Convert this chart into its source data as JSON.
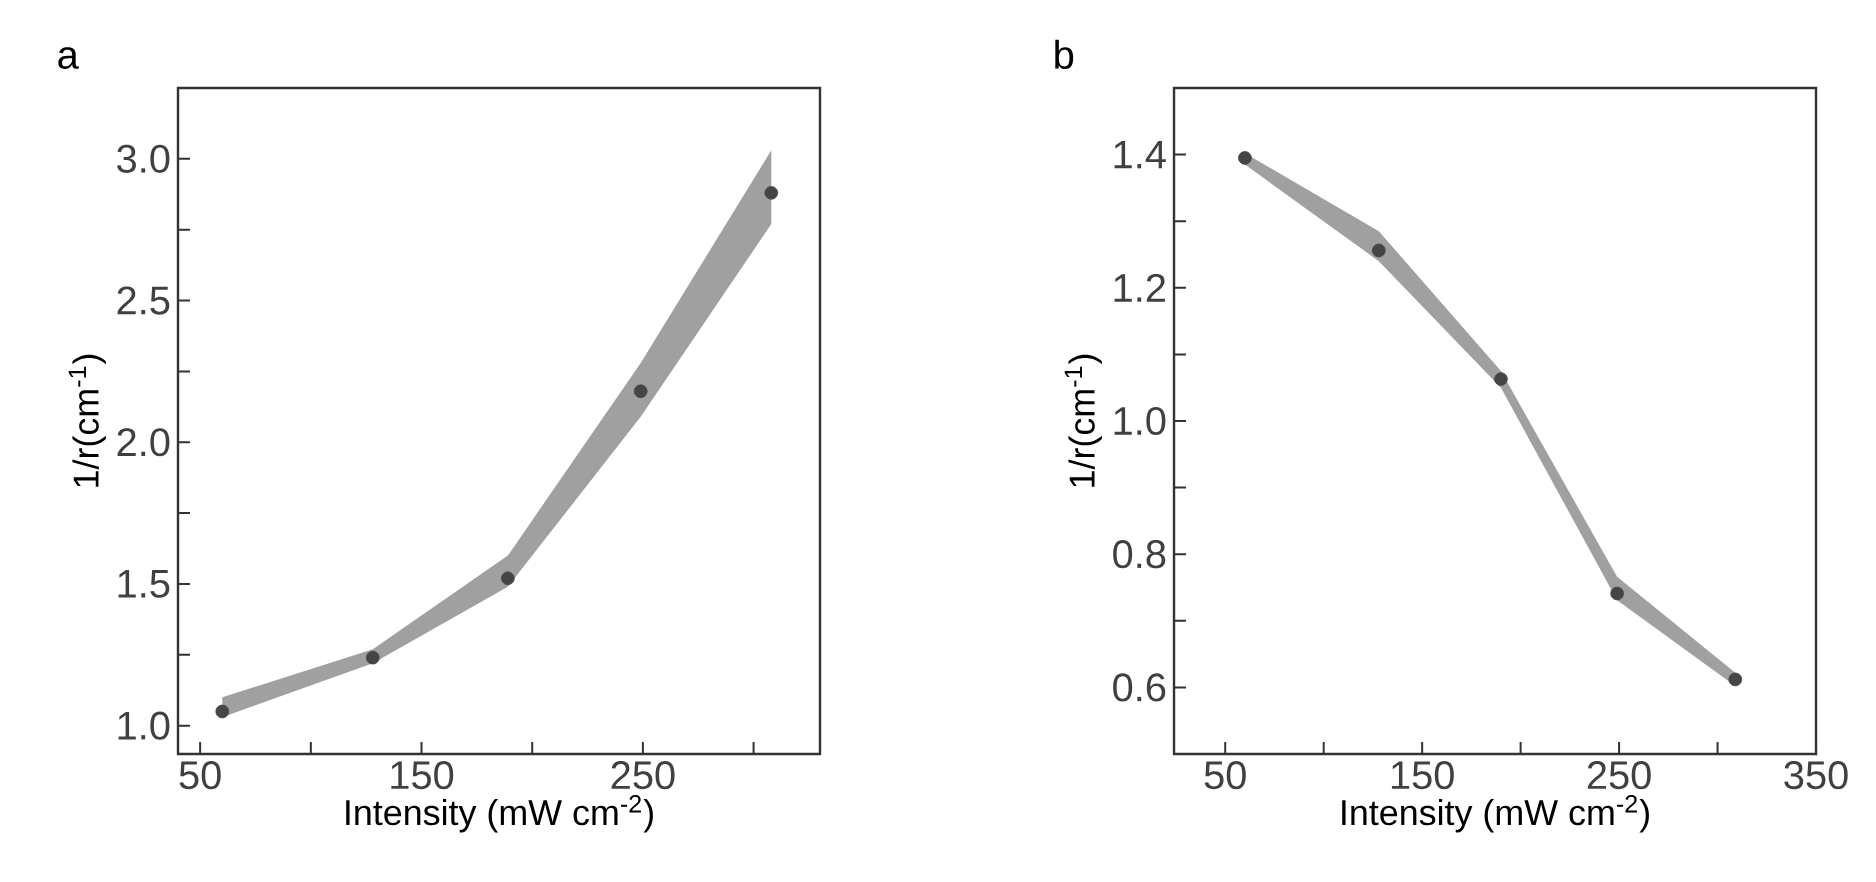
{
  "chart_data": [
    {
      "type": "scatter",
      "title": "a",
      "xlabel": "Intensity (mW cm$^{-2}$)",
      "ylabel": "1/r(cm$^{-1}$)",
      "xlim": [
        40,
        330
      ],
      "ylim": [
        0.9,
        3.25
      ],
      "xticks": [
        50,
        {
          "value": 100,
          "label": null
        },
        150,
        {
          "value": 200,
          "label": null
        },
        250,
        {
          "value": 300,
          "label": null
        }
      ],
      "yticks": [
        {
          "value": 1.0,
          "label": "1.0"
        },
        {
          "value": 1.25,
          "label": null
        },
        1.5,
        {
          "value": 1.75,
          "label": null
        },
        {
          "value": 2.0,
          "label": "2.0"
        },
        {
          "value": 2.25,
          "label": null
        },
        2.5,
        {
          "value": 2.75,
          "label": null
        },
        {
          "value": 3.0,
          "label": "3.0"
        }
      ],
      "series": [
        {
          "color": "#454545",
          "x": [
            60,
            128,
            189,
            249,
            308
          ],
          "values": [
            1.05,
            1.24,
            1.52,
            2.18,
            2.88
          ],
          "lower": [
            1.03,
            1.22,
            1.49,
            2.09,
            2.77
          ],
          "upper": [
            1.1,
            1.27,
            1.6,
            2.28,
            3.03
          ]
        }
      ]
    },
    {
      "type": "scatter",
      "title": "b",
      "xlabel": "Intensity (mW cm$^{-2}$)",
      "ylabel": "1/r(cm$^{-1}$)",
      "xlim": [
        24,
        350
      ],
      "ylim": [
        0.5,
        1.5
      ],
      "xticks": [
        50,
        {
          "value": 100,
          "label": null
        },
        150,
        {
          "value": 200,
          "label": null
        },
        250,
        {
          "value": 300,
          "label": null
        },
        350
      ],
      "yticks": [
        {
          "value": 0.6,
          "label": "0.6"
        },
        {
          "value": 0.7,
          "label": null
        },
        {
          "value": 0.8,
          "label": "0.8"
        },
        {
          "value": 0.9,
          "label": null
        },
        {
          "value": 1.0,
          "label": "1.0"
        },
        {
          "value": 1.1,
          "label": null
        },
        {
          "value": 1.2,
          "label": "1.2"
        },
        {
          "value": 1.3,
          "label": null
        },
        {
          "value": 1.4,
          "label": "1.4"
        }
      ],
      "series": [
        {
          "color": "#454545",
          "x": [
            60,
            128,
            190,
            249,
            309
          ],
          "values": [
            1.395,
            1.256,
            1.063,
            0.741,
            0.612
          ],
          "lower": [
            1.385,
            1.24,
            1.05,
            0.731,
            0.602
          ],
          "upper": [
            1.402,
            1.285,
            1.075,
            0.766,
            0.622
          ]
        }
      ]
    }
  ]
}
